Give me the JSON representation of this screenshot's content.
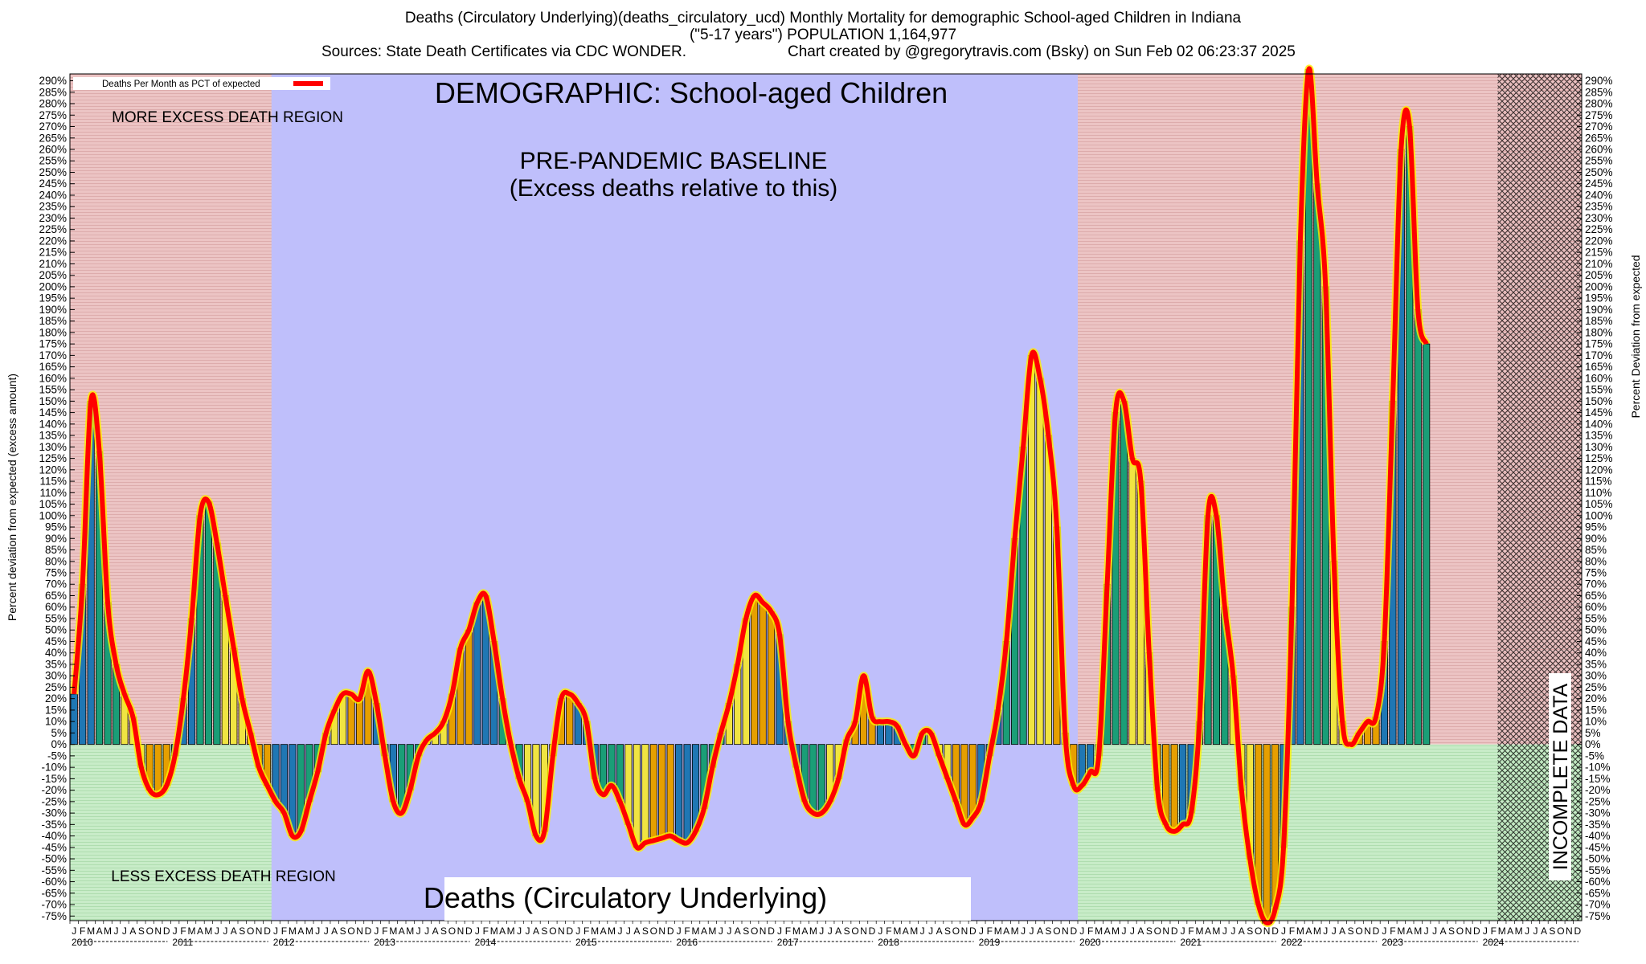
{
  "header": {
    "line1": "Deaths (Circulatory Underlying)(deaths_circulatory_ucd) Monthly Mortality for demographic School-aged Children in Indiana",
    "line2": "(\"5-17 years\") POPULATION 1,164,977",
    "line3_left": "Sources: State Death Certificates via CDC WONDER.",
    "line3_right": "Chart created by @gregorytravis.com (Bsky) on Sun Feb 02 06:23:37 2025"
  },
  "chart_data": {
    "type": "bar",
    "title": "DEMOGRAPHIC: School-aged Children",
    "ylabel_left": "Percent deviation from expected (excess amount)",
    "ylabel_right": "Percent Deviation from expected",
    "legend": {
      "label": "Deaths Per Month as PCT of expected",
      "line_color": "#ff0000",
      "placement": "top-left"
    },
    "annotations": {
      "more_excess": "MORE EXCESS DEATH REGION",
      "less_excess": "LESS EXCESS DEATH REGION",
      "baseline_title": "PRE-PANDEMIC BASELINE",
      "baseline_sub": "(Excess deaths relative to this)",
      "incomplete": "INCOMPLETE DATA",
      "metric_label": "Deaths (Circulatory Underlying)"
    },
    "ylim": [
      -77,
      293
    ],
    "ytick_step": 5,
    "month_letters": [
      "J",
      "F",
      "M",
      "A",
      "M",
      "J",
      "J",
      "A",
      "S",
      "O",
      "N",
      "D"
    ],
    "years": [
      "2010",
      "2011",
      "2012",
      "2013",
      "2014",
      "2015",
      "2016",
      "2017",
      "2018",
      "2019",
      "2020",
      "2021",
      "2022",
      "2023",
      "2024"
    ],
    "baseline_period": [
      "2012-01",
      "2019-12"
    ],
    "incomplete_period": [
      "2024-03",
      "2024-12"
    ],
    "bar_colors": [
      "#1f77b4",
      "#1a9e77",
      "#f0e442",
      "#e69f00"
    ],
    "colors": {
      "excess_region": "#ecc4c4",
      "less_region": "#c8ecc8",
      "baseline_region": "#bfbffb",
      "line": "#ff0000",
      "incomplete_hatch": "#000000"
    },
    "values": [
      22,
      70,
      150,
      128,
      62,
      35,
      22,
      12,
      -10,
      -20,
      -22,
      -18,
      -5,
      20,
      55,
      100,
      106,
      88,
      65,
      42,
      20,
      5,
      -10,
      -18,
      -25,
      -30,
      -40,
      -38,
      -25,
      -12,
      5,
      15,
      22,
      22,
      20,
      32,
      18,
      -5,
      -25,
      -30,
      -20,
      -5,
      2,
      5,
      10,
      22,
      42,
      50,
      62,
      65,
      45,
      20,
      0,
      -15,
      -25,
      -40,
      -38,
      -5,
      20,
      22,
      18,
      10,
      -15,
      -22,
      -18,
      -25,
      -35,
      -45,
      -43,
      -42,
      -41,
      -40,
      -42,
      -43,
      -38,
      -28,
      -10,
      5,
      18,
      35,
      55,
      65,
      62,
      58,
      48,
      10,
      -10,
      -25,
      -30,
      -30,
      -25,
      -15,
      2,
      10,
      30,
      12,
      10,
      10,
      8,
      0,
      -5,
      5,
      5,
      -5,
      -15,
      -25,
      -35,
      -32,
      -25,
      -5,
      15,
      45,
      90,
      130,
      170,
      160,
      135,
      95,
      5,
      -18,
      -18,
      -12,
      -5,
      70,
      145,
      150,
      125,
      115,
      40,
      -20,
      -35,
      -38,
      -35,
      -30,
      10,
      100,
      100,
      60,
      30,
      -20,
      -50,
      -70,
      -78,
      -72,
      -45,
      60,
      220,
      295,
      245,
      200,
      80,
      10,
      0,
      5,
      10,
      12,
      45,
      150,
      260,
      270,
      190,
      175
    ]
  }
}
